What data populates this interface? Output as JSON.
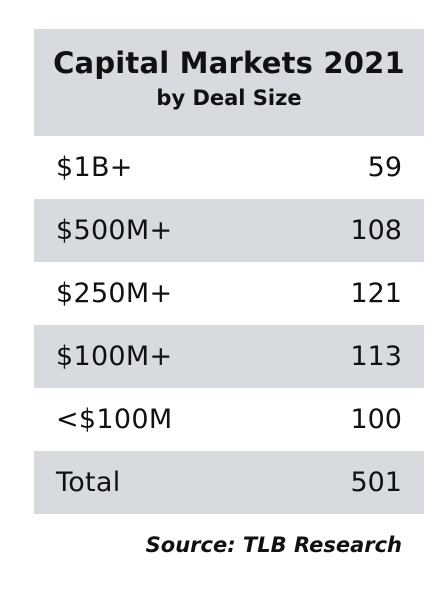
{
  "chart_data": {
    "type": "table",
    "title": "Capital Markets 2021",
    "subtitle": "by Deal Size",
    "rows": [
      {
        "label": "$1B+",
        "value": 59
      },
      {
        "label": "$500M+",
        "value": 108
      },
      {
        "label": "$250M+",
        "value": 121
      },
      {
        "label": "$100M+",
        "value": 113
      },
      {
        "label": "<$100M",
        "value": 100
      },
      {
        "label": "Total",
        "value": 501
      }
    ],
    "source": "Source: TLB Research",
    "colors": {
      "header_bg": "#d7dbdf",
      "stripe_bg": "#d7dbdf",
      "text": "#111111"
    }
  }
}
